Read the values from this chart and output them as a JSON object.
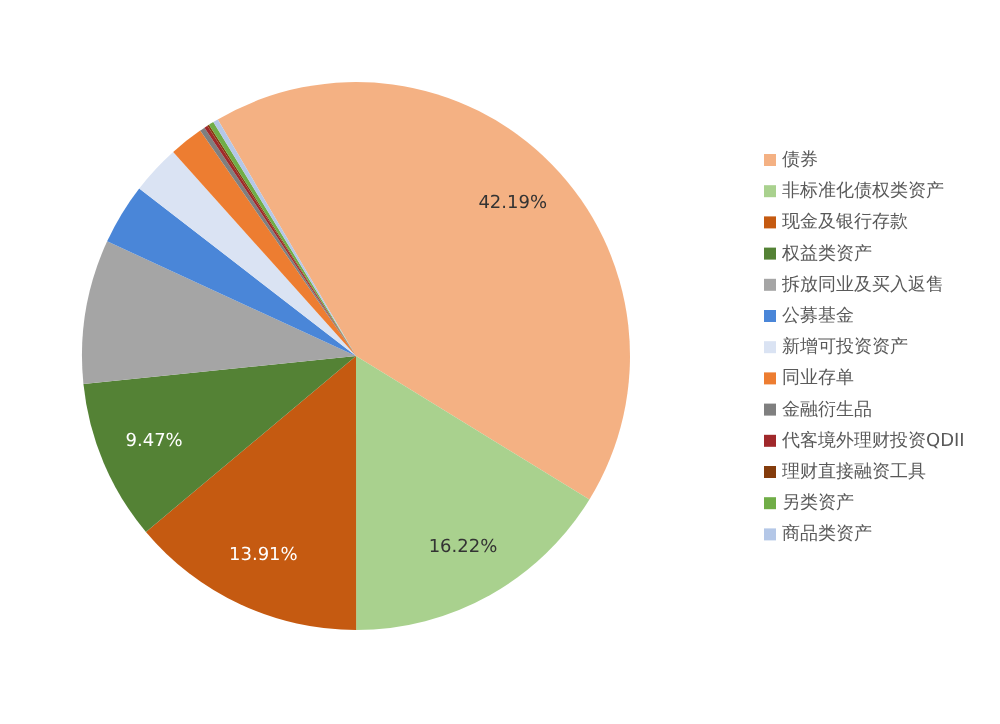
{
  "chart_data": {
    "type": "pie",
    "categories": [
      "债券",
      "非标准化债权类资产",
      "现金及银行存款",
      "权益类资产",
      "拆放同业及买入返售",
      "公募基金",
      "新增可投资资产",
      "同业存单",
      "金融衍生品",
      "代客境外理财投资QDII",
      "理财直接融资工具",
      "另类资产",
      "商品类资产"
    ],
    "values": [
      42.19,
      16.22,
      13.91,
      9.47,
      8.5,
      3.6,
      2.9,
      2.0,
      0.3,
      0.2,
      0.11,
      0.3,
      0.3
    ],
    "value_labels": [
      "42.19%",
      "16.22%",
      "13.91%",
      "9.47%",
      null,
      null,
      null,
      null,
      null,
      null,
      null,
      null,
      null
    ],
    "colors": [
      "#f4b183",
      "#a9d18e",
      "#c55a11",
      "#548235",
      "#a5a5a5",
      "#4a86d8",
      "#dae3f3",
      "#ed7d31",
      "#7f7f7f",
      "#a0282b",
      "#843c0c",
      "#70ad47",
      "#b4c7e7"
    ],
    "legend": "right"
  }
}
